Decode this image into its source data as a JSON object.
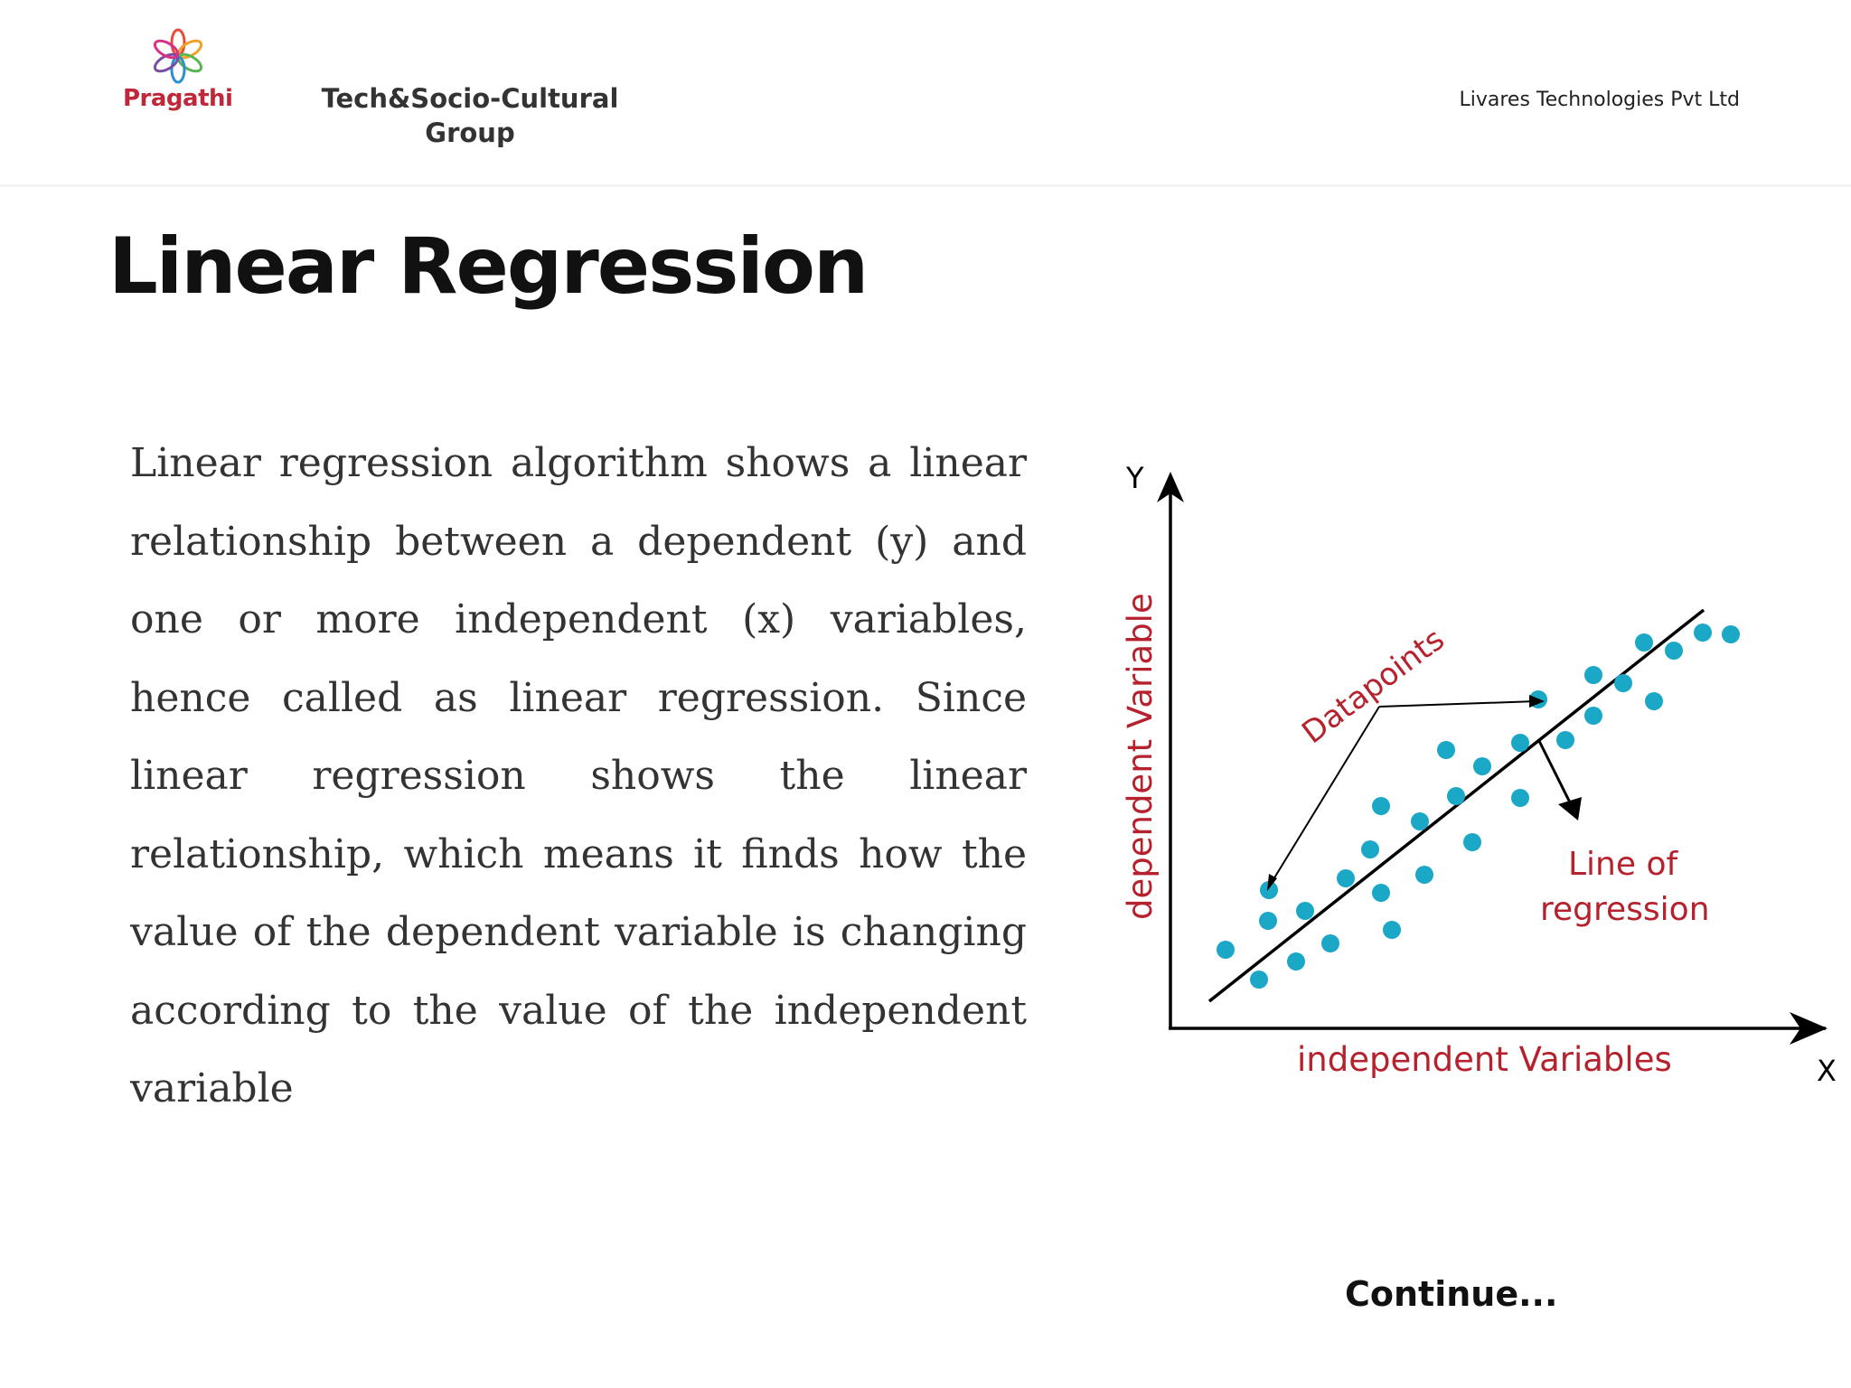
{
  "header": {
    "logo": {
      "brand": "Pragathi",
      "icon": "flower-logo-icon"
    },
    "group_name": "Tech&Socio-Cultural Group",
    "company": "Livares Technologies Pvt Ltd"
  },
  "slide": {
    "title": "Linear Regression",
    "body": "Linear regression algorithm shows a linear relationship between a dependent (y) and one or more independent (x) variables, hence called as linear regression. Since linear regression shows the linear relationship, which means it finds how the value of the dependent variable is changing according to the value of the independent variable",
    "continue_label": "Continue..."
  },
  "diagram": {
    "y_axis_letter": "Y",
    "x_axis_letter": "X",
    "y_axis_label": "dependent Variable",
    "x_axis_label": "independent Variables",
    "datapoints_label": "Datapoints",
    "regression_label_line1": "Line of",
    "regression_label_line2": "regression",
    "colors": {
      "points": "#1aa8c6",
      "labels": "#b5222d",
      "lines": "#000000"
    }
  }
}
